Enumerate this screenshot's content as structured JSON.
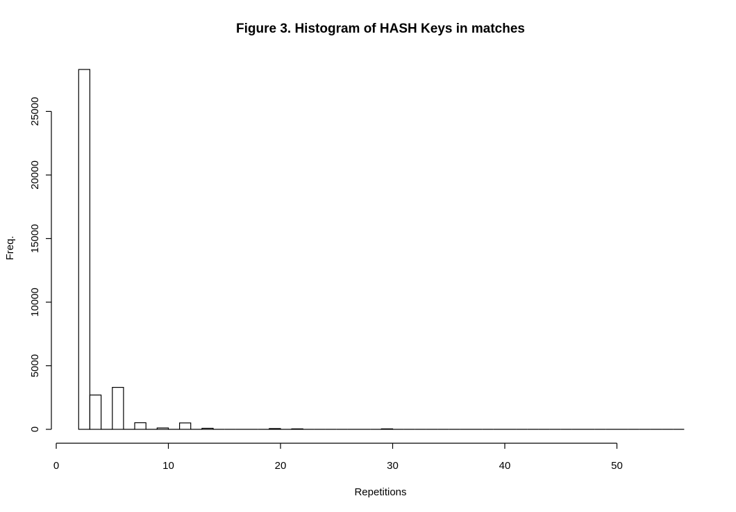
{
  "chart_data": {
    "type": "bar",
    "title": "Figure 3. Histogram of HASH Keys in matches",
    "xlabel": "Repetitions",
    "ylabel": "Freq.",
    "xlim": [
      0,
      56
    ],
    "ylim": [
      0,
      28300
    ],
    "x_ticks": [
      0,
      10,
      20,
      30,
      40,
      50
    ],
    "y_ticks": [
      0,
      5000,
      10000,
      15000,
      20000,
      25000
    ],
    "bin_edges": [
      2,
      3,
      4,
      5,
      6,
      7,
      8,
      9,
      10,
      11,
      12,
      13,
      14,
      15,
      16,
      17,
      18,
      19,
      20,
      21,
      22,
      23,
      24,
      25,
      26,
      27,
      28,
      29,
      30,
      31,
      32,
      33,
      34,
      35,
      36,
      37,
      38,
      39,
      40,
      41,
      42,
      43,
      44,
      45,
      46,
      47,
      48,
      49,
      50,
      51,
      52,
      53,
      54,
      55,
      56
    ],
    "values": [
      28300,
      2700,
      0,
      3300,
      0,
      520,
      0,
      110,
      0,
      500,
      0,
      80,
      0,
      0,
      0,
      0,
      0,
      60,
      0,
      40,
      0,
      0,
      0,
      0,
      0,
      0,
      0,
      40,
      0,
      0,
      0,
      0,
      0,
      0,
      0,
      0,
      0,
      0,
      0,
      0,
      0,
      0,
      0,
      0,
      0,
      0,
      0,
      0,
      0,
      0,
      0,
      0,
      0,
      0
    ],
    "grid": false,
    "legend": "none",
    "colors": {
      "bar_fill": "#ffffff",
      "bar_stroke": "#000000"
    }
  }
}
